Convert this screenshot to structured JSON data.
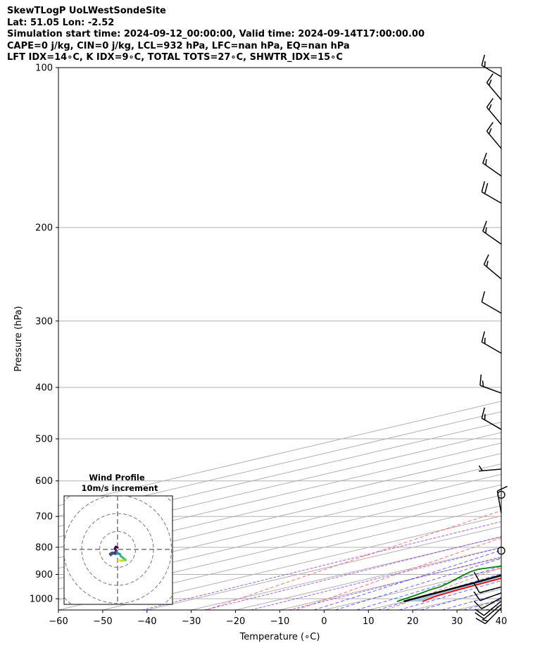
{
  "header": {
    "line1": "SkewTLogP UoLWestSondeSite",
    "line2": "Lat: 51.05   Lon: -2.52",
    "line3": "Simulation start time: 2024-09-12_00:00:00, Valid time: 2024-09-14T17:00:00.00",
    "line4": "CAPE=0 j/kg, CIN=0 j/kg, LCL=932 hPa, LFC=nan hPa, EQ=nan hPa",
    "line5": "LFT IDX=14∘C, K IDX=9∘C, TOTAL TOTS=27∘C, SHWTR_IDX=15∘C"
  },
  "colors": {
    "temperature": "#ff0000",
    "dewpoint": "#008000",
    "parcel": "#000000",
    "cape_fill": "#a3c6df",
    "dry_adiabat": "#ff5a5a",
    "moist_adiabat": "#3c3cff",
    "mixing_ratio": "#8a2be2",
    "isotherm_grid": "#b0b0b0"
  },
  "chart_data": [
    {
      "type": "line",
      "subtype": "skew-T log-P diagram",
      "xlabel": "Temperature (∘C)",
      "ylabel": "Pressure (hPa)",
      "xlim": [
        -60,
        40
      ],
      "ylim": [
        1050,
        100
      ],
      "y_scale": "log",
      "x_ticks": [
        -60,
        -50,
        -40,
        -30,
        -20,
        -10,
        0,
        10,
        20,
        30,
        40
      ],
      "y_ticks": [
        100,
        200,
        300,
        400,
        500,
        600,
        700,
        800,
        900,
        1000
      ],
      "skew_ratio": 0.675,
      "grid": true,
      "series": [
        {
          "role": "temperature",
          "color": "#ff0000",
          "p": [
            1012,
            990,
            960,
            930,
            900,
            870,
            840,
            800,
            760,
            720,
            680,
            640,
            600,
            560,
            520,
            480,
            440,
            400,
            360,
            330,
            300,
            280,
            260,
            240,
            220,
            200,
            185,
            180,
            175,
            160,
            145,
            135,
            128,
            120,
            112,
            106,
            100
          ],
          "t": [
            14.1,
            12.1,
            10.8,
            10.0,
            9.5,
            9.5,
            10.0,
            10.1,
            9.5,
            9.0,
            8.0,
            6.9,
            5.7,
            4.8,
            3.0,
            1.2,
            -0.9,
            -3.0,
            -5.3,
            -7.5,
            -9.8,
            -11.0,
            -12.2,
            -14.0,
            -16.7,
            -19.0,
            -21.0,
            -23.0,
            -24.2,
            -25.7,
            -29.2,
            -34.7,
            -38.8,
            -44.2,
            -49.5,
            -54.8,
            -60.2
          ]
        },
        {
          "role": "dewpoint",
          "color": "#008000",
          "p": [
            1012,
            985,
            960,
            950,
            930,
            910,
            890,
            880,
            860,
            830,
            800,
            780,
            740,
            700,
            640,
            580,
            540,
            500,
            460,
            430,
            400,
            370,
            340,
            310,
            290,
            270,
            250,
            230,
            210,
            190,
            180,
            175,
            165,
            150,
            140,
            130,
            120,
            110,
            100
          ],
          "t": [
            8.3,
            6.5,
            4.4,
            4.1,
            1.7,
            -1.0,
            -3.6,
            -4.3,
            -0.6,
            4.3,
            7.7,
            9.5,
            9.5,
            8.7,
            6.0,
            3.4,
            -0.7,
            -2.9,
            -7.0,
            -10.4,
            -14.9,
            -18.4,
            -21.3,
            -22.5,
            -21.5,
            -19.5,
            -18.8,
            -21.2,
            -24.5,
            -28.3,
            -30.5,
            -30.4,
            -32.2,
            -36.6,
            -38.8,
            -42.5,
            -47.2,
            -51.3,
            -55.0
          ]
        },
        {
          "role": "parcel",
          "color": "#000000",
          "p": [
            1012,
            990,
            960,
            932,
            900,
            850,
            800,
            750,
            700,
            650,
            600,
            550,
            500,
            450,
            400,
            350,
            300,
            250,
            200,
            150,
            100
          ],
          "t": [
            9.8,
            9.2,
            8.5,
            7.8,
            6.6,
            4.6,
            2.4,
            -0.1,
            -2.9,
            -5.9,
            -9.4,
            -13.3,
            -17.9,
            -23.3,
            -29.6,
            -37.2,
            -46.0,
            -56.0,
            -68.0,
            -82.0,
            -95.5
          ]
        }
      ],
      "shading": "area between parcel and temperature profiles"
    },
    {
      "type": "line",
      "subtype": "hodograph",
      "title": "Wind Profile",
      "subtitle": "10m/s increment",
      "rings_mps": [
        10,
        20,
        30,
        40
      ],
      "u": [
        0.5,
        2.0,
        3.5,
        4.2,
        4.5,
        3.2,
        2.0,
        1.2,
        -0.5,
        -1.2,
        -2.5,
        -3.8,
        -4.2,
        -3.0,
        -1.5,
        -0.8,
        -1.5,
        -1.0,
        0.0
      ],
      "v": [
        -6.0,
        -6.3,
        -6.0,
        -5.4,
        -6.0,
        -4.8,
        -4.0,
        -2.5,
        -2.0,
        -2.6,
        -2.2,
        -3.2,
        -2.5,
        -1.8,
        -2.0,
        -0.5,
        0.5,
        1.5,
        1.0
      ],
      "colormap": "viridis"
    }
  ],
  "wind_barbs": {
    "p": [
      1040,
      1025,
      1010,
      995,
      975,
      950,
      905,
      690,
      570,
      480,
      410,
      345,
      290,
      250,
      215,
      180,
      160,
      142,
      128,
      115,
      104
    ],
    "speed_kt": [
      15,
      10,
      10,
      10,
      10,
      10,
      10,
      10,
      5,
      15,
      15,
      15,
      10,
      15,
      15,
      20,
      15,
      15,
      15,
      15,
      15
    ],
    "dir_deg": [
      225,
      230,
      230,
      240,
      250,
      255,
      255,
      350,
      265,
      300,
      290,
      300,
      300,
      310,
      305,
      300,
      305,
      320,
      320,
      320,
      300
    ],
    "calm_p": [
      812,
      637
    ]
  }
}
